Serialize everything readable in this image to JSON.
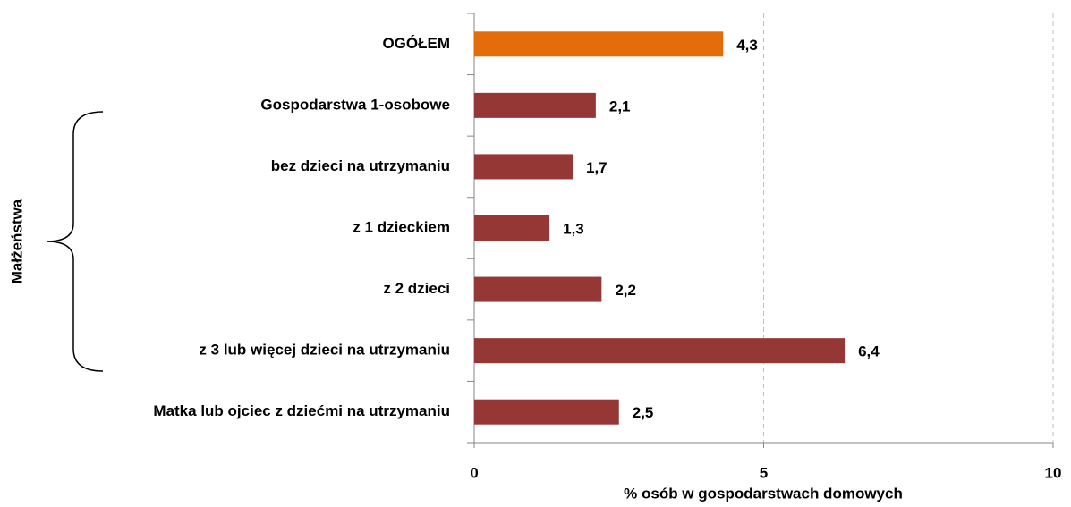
{
  "chart_data": {
    "type": "barh",
    "categories": [
      "OGÓŁEM",
      "Gospodarstwa 1-osobowe",
      "bez dzieci na utrzymaniu",
      "z 1 dzieckiem",
      "z 2 dzieci",
      "z 3 lub więcej dzieci na utrzymaniu",
      "Matka lub ojciec z dziećmi na utrzymaniu"
    ],
    "values": [
      4.3,
      2.1,
      1.7,
      1.3,
      2.2,
      6.4,
      2.5
    ],
    "value_labels": [
      "4,3",
      "2,1",
      "1,7",
      "1,3",
      "2,2",
      "6,4",
      "2,5"
    ],
    "colors": [
      "#e46c0a",
      "#953735",
      "#953735",
      "#953735",
      "#953735",
      "#953735",
      "#953735"
    ],
    "xlabel": "%  osób w gospodarstwach domowych",
    "xlim": [
      0,
      10
    ],
    "xticks": [
      0,
      5,
      10
    ],
    "grid": true,
    "annotations": [
      "Małżeństwa"
    ]
  }
}
